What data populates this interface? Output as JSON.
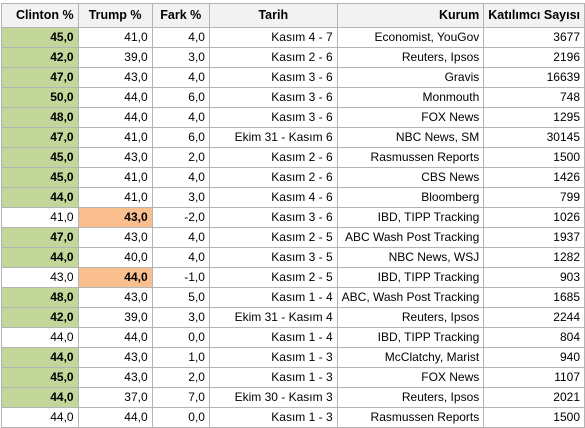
{
  "headers": [
    "Clinton %",
    "Trump %",
    "Fark %",
    "Tarih",
    "Kurum",
    "Katılımcı Sayısı"
  ],
  "colors": {
    "winner_clinton": "#c4d79b",
    "winner_trump": "#fabf8f",
    "header_bg": "#f2f2f2",
    "grid": "#b4b4b4"
  },
  "rows": [
    {
      "clinton": "45,0",
      "trump": "41,0",
      "diff": "4,0",
      "date": "Kasım 4 - 7",
      "org": "Economist, YouGov",
      "n": "3677",
      "leader": "clinton"
    },
    {
      "clinton": "42,0",
      "trump": "39,0",
      "diff": "3,0",
      "date": "Kasım 2 - 6",
      "org": "Reuters, Ipsos",
      "n": "2196",
      "leader": "clinton"
    },
    {
      "clinton": "47,0",
      "trump": "43,0",
      "diff": "4,0",
      "date": "Kasım 3 - 6",
      "org": "Gravis",
      "n": "16639",
      "leader": "clinton"
    },
    {
      "clinton": "50,0",
      "trump": "44,0",
      "diff": "6,0",
      "date": "Kasım 3 - 6",
      "org": "Monmouth",
      "n": "748",
      "leader": "clinton"
    },
    {
      "clinton": "48,0",
      "trump": "44,0",
      "diff": "4,0",
      "date": "Kasım 3 - 6",
      "org": "FOX News",
      "n": "1295",
      "leader": "clinton"
    },
    {
      "clinton": "47,0",
      "trump": "41,0",
      "diff": "6,0",
      "date": "Ekim 31 - Kasım 6",
      "org": "NBC News, SM",
      "n": "30145",
      "leader": "clinton"
    },
    {
      "clinton": "45,0",
      "trump": "43,0",
      "diff": "2,0",
      "date": "Kasım 2 - 6",
      "org": "Rasmussen Reports",
      "n": "1500",
      "leader": "clinton"
    },
    {
      "clinton": "45,0",
      "trump": "41,0",
      "diff": "4,0",
      "date": "Kasım 2 - 6",
      "org": "CBS News",
      "n": "1426",
      "leader": "clinton"
    },
    {
      "clinton": "44,0",
      "trump": "41,0",
      "diff": "3,0",
      "date": "Kasım 4 - 6",
      "org": "Bloomberg",
      "n": "799",
      "leader": "clinton"
    },
    {
      "clinton": "41,0",
      "trump": "43,0",
      "diff": "-2,0",
      "date": "Kasım 3 - 6",
      "org": "IBD, TIPP Tracking",
      "n": "1026",
      "leader": "trump"
    },
    {
      "clinton": "47,0",
      "trump": "43,0",
      "diff": "4,0",
      "date": "Kasım 2 - 5",
      "org": "ABC Wash Post Tracking",
      "n": "1937",
      "leader": "clinton"
    },
    {
      "clinton": "44,0",
      "trump": "40,0",
      "diff": "4,0",
      "date": "Kasım 3 - 5",
      "org": "NBC News, WSJ",
      "n": "1282",
      "leader": "clinton"
    },
    {
      "clinton": "43,0",
      "trump": "44,0",
      "diff": "-1,0",
      "date": "Kasım 2 - 5",
      "org": "IBD, TIPP Tracking",
      "n": "903",
      "leader": "trump"
    },
    {
      "clinton": "48,0",
      "trump": "43,0",
      "diff": "5,0",
      "date": "Kasım 1 - 4",
      "org": "ABC, Wash Post Tracking",
      "n": "1685",
      "leader": "clinton"
    },
    {
      "clinton": "42,0",
      "trump": "39,0",
      "diff": "3,0",
      "date": "Ekim 31 - Kasım 4",
      "org": "Reuters, Ipsos",
      "n": "2244",
      "leader": "clinton"
    },
    {
      "clinton": "44,0",
      "trump": "44,0",
      "diff": "0,0",
      "date": "Kasım 1 - 4",
      "org": "IBD, TIPP Tracking",
      "n": "804",
      "leader": "none"
    },
    {
      "clinton": "44,0",
      "trump": "43,0",
      "diff": "1,0",
      "date": "Kasım 1 - 3",
      "org": "McClatchy, Marist",
      "n": "940",
      "leader": "clinton"
    },
    {
      "clinton": "45,0",
      "trump": "43,0",
      "diff": "2,0",
      "date": "Kasım 1 - 3",
      "org": "FOX News",
      "n": "1107",
      "leader": "clinton"
    },
    {
      "clinton": "44,0",
      "trump": "37,0",
      "diff": "7,0",
      "date": "Ekim 30 - Kasım 3",
      "org": "Reuters, Ipsos",
      "n": "2021",
      "leader": "clinton"
    },
    {
      "clinton": "44,0",
      "trump": "44,0",
      "diff": "0,0",
      "date": "Kasım 1 - 3",
      "org": "Rasmussen Reports",
      "n": "1500",
      "leader": "none"
    }
  ]
}
